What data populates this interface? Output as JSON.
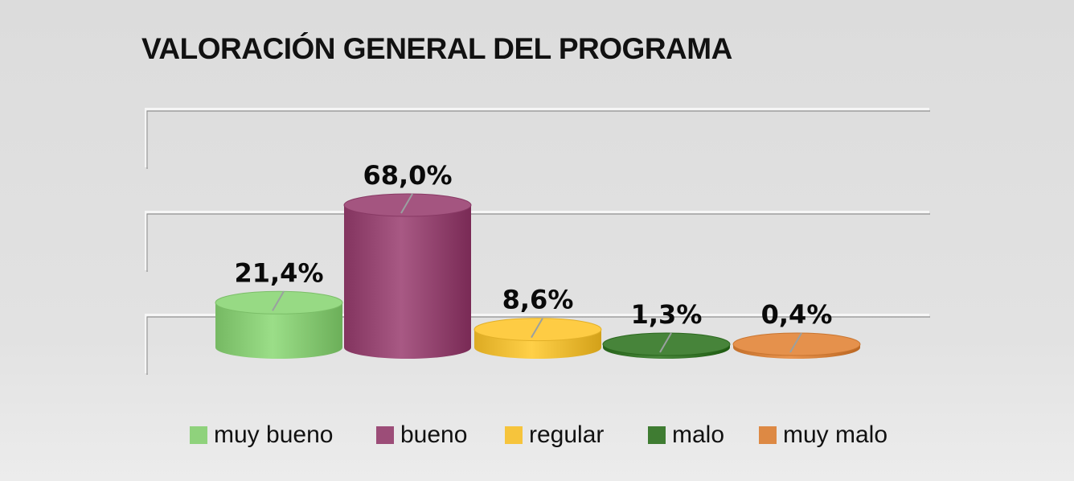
{
  "chart_data": {
    "type": "bar",
    "title": "VALORACIÓN GENERAL DEL PROGRAMA",
    "categories": [
      "muy bueno",
      "bueno",
      "regular",
      "malo",
      "muy malo"
    ],
    "values": [
      21.4,
      68.0,
      8.6,
      1.3,
      0.4
    ],
    "data_labels": [
      "21,4%",
      "68,0%",
      "8,6%",
      "1,3%",
      "0,4%"
    ],
    "colors": [
      "#8fd27c",
      "#9c4d78",
      "#f6c43c",
      "#3f7c32",
      "#dd8944"
    ],
    "ylim": [
      0,
      100
    ],
    "gridlines": [
      0,
      50,
      100
    ],
    "legend_position": "bottom",
    "xlabel": "",
    "ylabel": ""
  }
}
